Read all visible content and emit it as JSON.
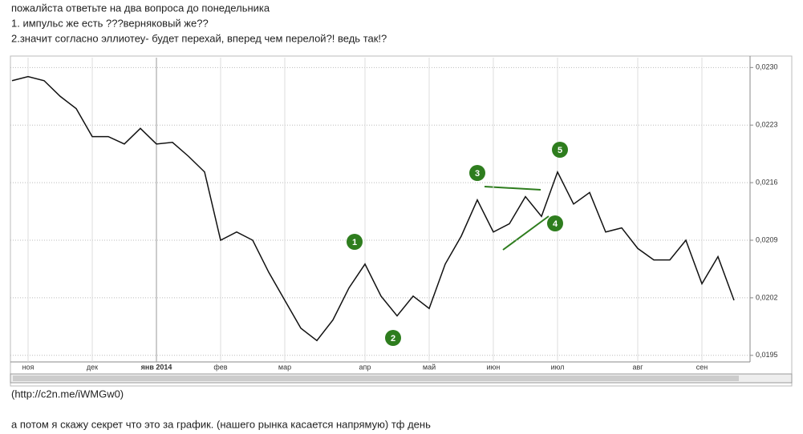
{
  "post": {
    "line1": "пожалйста ответьте на два вопроса до понедельника",
    "line2": "1. импульс же есть ???верняковый же??",
    "line3": "2.значит согласно эллиотеу- будет перехай, вперед чем перелой?! ведь так!?",
    "link": "(http://c2n.me/iWMGw0)",
    "footer": "а потом я скажу секрет что это за график. (нашего рынка касается напрямую) тф день"
  },
  "chart_data": {
    "type": "line",
    "color": "#111111",
    "categories": [
      null,
      "ноя",
      null,
      null,
      null,
      "дек",
      null,
      null,
      null,
      "янв 2014",
      null,
      null,
      null,
      "фев",
      null,
      null,
      null,
      "мар",
      null,
      null,
      null,
      null,
      "апр",
      null,
      null,
      null,
      "май",
      null,
      null,
      null,
      "июн",
      null,
      null,
      null,
      "июл",
      null,
      null,
      null,
      null,
      "авг",
      null,
      null,
      null,
      "сен",
      null,
      null
    ],
    "values": [
      0.02284,
      0.02289,
      0.02284,
      0.02265,
      0.0225,
      0.02216,
      0.02216,
      0.02207,
      0.02226,
      0.02207,
      0.02209,
      0.02192,
      0.02173,
      0.0209,
      0.021,
      0.0209,
      0.02051,
      0.02017,
      0.01983,
      0.01968,
      0.01993,
      0.02032,
      0.02061,
      0.02022,
      0.01998,
      0.02022,
      0.02007,
      0.02061,
      0.02095,
      0.02139,
      0.021,
      0.0211,
      0.02143,
      0.02119,
      0.02173,
      0.02134,
      0.02148,
      0.021,
      0.02105,
      0.0208,
      0.02066,
      0.02066,
      0.0209,
      0.02037,
      0.0207,
      0.02017
    ],
    "ylim": [
      0.01942,
      0.02312
    ],
    "yticks": [
      {
        "value": 0.023,
        "label": "0,0230"
      },
      {
        "value": 0.0223,
        "label": "0,0223"
      },
      {
        "value": 0.0216,
        "label": "0,0216"
      },
      {
        "value": 0.0209,
        "label": "0,0209"
      },
      {
        "value": 0.0202,
        "label": "0,0202"
      },
      {
        "value": 0.0195,
        "label": "0,0195"
      }
    ],
    "grid": true,
    "annotations": [
      "1",
      "2",
      "3",
      "4",
      "5"
    ]
  }
}
